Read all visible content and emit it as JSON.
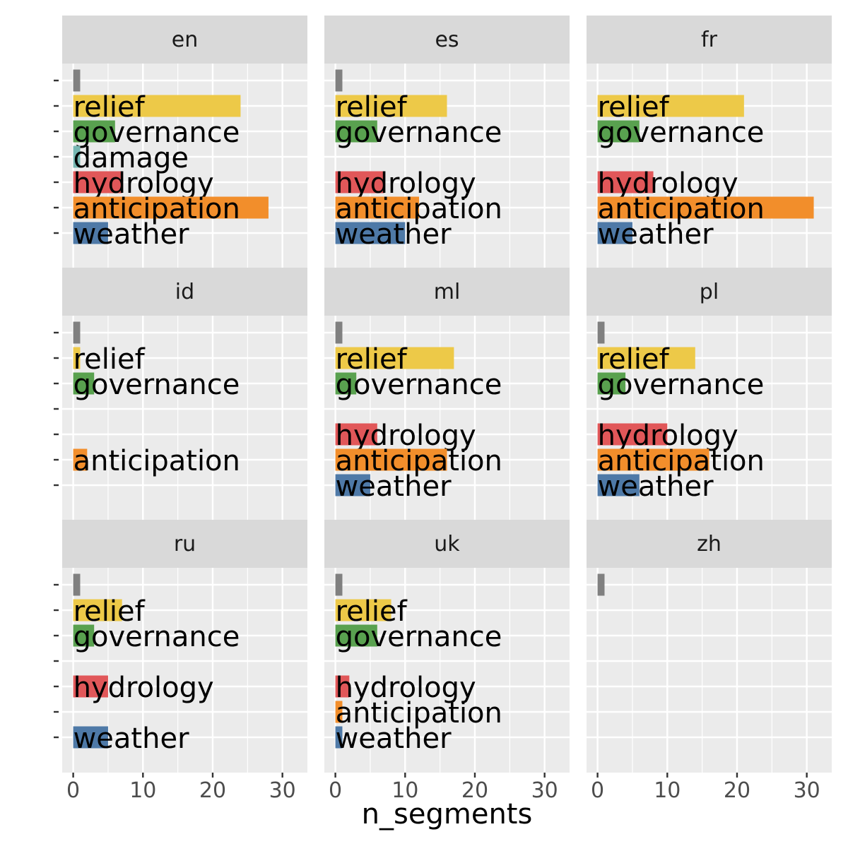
{
  "chart_data": {
    "type": "bar",
    "orientation": "horizontal",
    "facet_layout": {
      "rows": 3,
      "cols": 3
    },
    "xlabel": "n_segments",
    "ylabel": "",
    "xlim": [
      0,
      32
    ],
    "x_ticks": [
      0,
      10,
      20,
      30
    ],
    "categories": [
      "",
      "relief",
      "governance",
      "damage",
      "hydrology",
      "anticipation",
      "weather"
    ],
    "category_colors": {
      "": "#808080",
      "relief": "#edc948",
      "governance": "#59a14f",
      "damage": "#76b7b2",
      "hydrology": "#e15759",
      "anticipation": "#f28e2b",
      "weather": "#4e79a7"
    },
    "panel_background": "#ebebeb",
    "strip_background": "#d9d9d9",
    "grid": true,
    "legend": "none",
    "panels": [
      {
        "name": "en",
        "values": {
          "": 1,
          "relief": 24,
          "governance": 6,
          "damage": 1,
          "hydrology": 7,
          "anticipation": 28,
          "weather": 5
        }
      },
      {
        "name": "es",
        "values": {
          "": 1,
          "relief": 16,
          "governance": 6,
          "hydrology": 7,
          "anticipation": 12,
          "weather": 10
        }
      },
      {
        "name": "fr",
        "values": {
          "": 0,
          "relief": 21,
          "governance": 6,
          "hydrology": 8,
          "anticipation": 31,
          "weather": 5
        }
      },
      {
        "name": "id",
        "values": {
          "": 1,
          "relief": 1,
          "governance": 3,
          "anticipation": 2
        }
      },
      {
        "name": "ml",
        "values": {
          "": 1,
          "relief": 17,
          "governance": 3,
          "hydrology": 6,
          "anticipation": 16,
          "weather": 5
        }
      },
      {
        "name": "pl",
        "values": {
          "": 1,
          "relief": 14,
          "governance": 4,
          "hydrology": 10,
          "anticipation": 16,
          "weather": 6
        }
      },
      {
        "name": "ru",
        "values": {
          "": 1,
          "relief": 7,
          "governance": 3,
          "hydrology": 5,
          "weather": 5
        }
      },
      {
        "name": "uk",
        "values": {
          "": 1,
          "relief": 8,
          "governance": 6,
          "hydrology": 2,
          "anticipation": 1,
          "weather": 1
        }
      },
      {
        "name": "zh",
        "values": {
          "": 1
        }
      }
    ]
  }
}
